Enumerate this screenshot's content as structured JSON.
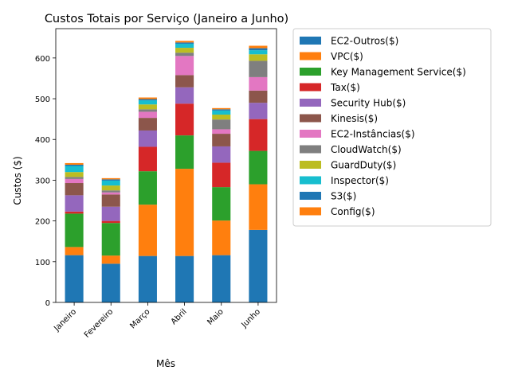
{
  "chart_data": {
    "type": "bar",
    "stacked": true,
    "title": "Custos Totais por Serviço (Janeiro a Junho)",
    "xlabel": "Mês",
    "ylabel": "Custos ($)",
    "ylim": [
      0,
      672
    ],
    "yticks": [
      0,
      100,
      200,
      300,
      400,
      500,
      600
    ],
    "legend_position": "outside-right",
    "categories": [
      "Janeiro",
      "Fevereiro",
      "Março",
      "Abril",
      "Maio",
      "Junho"
    ],
    "series": [
      {
        "name": "EC2-Outros($)",
        "color": "#1f77b4",
        "values": [
          116,
          95,
          114,
          114,
          116,
          178
        ]
      },
      {
        "name": "VPC($)",
        "color": "#ff7f0e",
        "values": [
          20,
          20,
          126,
          214,
          85,
          112
        ]
      },
      {
        "name": "Key Management Service($)",
        "color": "#2ca02c",
        "values": [
          82,
          80,
          82,
          82,
          82,
          82
        ]
      },
      {
        "name": "Tax($)",
        "color": "#d62728",
        "values": [
          5,
          5,
          60,
          78,
          60,
          78
        ]
      },
      {
        "name": "Security Hub($)",
        "color": "#9467bd",
        "values": [
          40,
          35,
          40,
          40,
          40,
          40
        ]
      },
      {
        "name": "Kinesis($)",
        "color": "#8c564b",
        "values": [
          30,
          30,
          31,
          30,
          31,
          30
        ]
      },
      {
        "name": "EC2-Instâncias($)",
        "color": "#e377c2",
        "values": [
          10,
          5,
          15,
          47,
          11,
          33
        ]
      },
      {
        "name": "CloudWatch($)",
        "color": "#7f7f7f",
        "values": [
          5,
          5,
          6,
          8,
          24,
          40
        ]
      },
      {
        "name": "GuardDuty($)",
        "color": "#bcbd22",
        "values": [
          12,
          12,
          12,
          12,
          12,
          16
        ]
      },
      {
        "name": "Inspector($)",
        "color": "#17becf",
        "values": [
          15,
          12,
          10,
          10,
          10,
          10
        ]
      },
      {
        "name": "S3($)",
        "color": "#1f77b4",
        "values": [
          3,
          3,
          3,
          3,
          3,
          5
        ]
      },
      {
        "name": "Config($)",
        "color": "#ff7f0e",
        "values": [
          4,
          3,
          4,
          4,
          3,
          6
        ]
      }
    ]
  }
}
